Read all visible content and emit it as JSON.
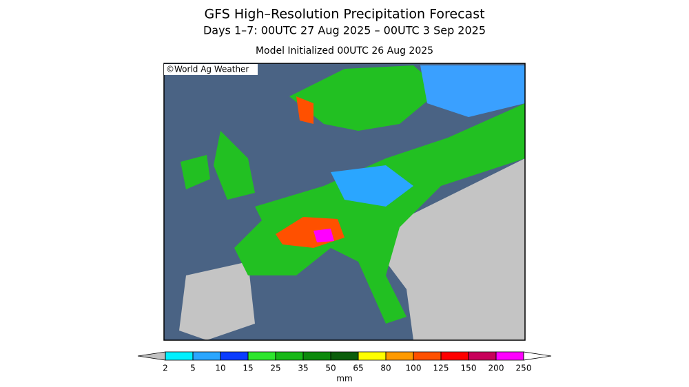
{
  "header": {
    "title": "GFS High–Resolution Precipitation Forecast",
    "subtitle": "Days 1–7: 00UTC 27 Aug 2025 – 00UTC 3 Sep 2025",
    "init": "Model Initialized 00UTC 26 Aug 2025"
  },
  "map": {
    "credit": "©World Ag Weather"
  },
  "colorbar": {
    "levels": [
      2,
      5,
      10,
      15,
      25,
      35,
      50,
      65,
      80,
      100,
      125,
      150,
      200,
      250
    ],
    "colors": [
      "#00f0ff",
      "#2aa6ff",
      "#0a3cff",
      "#2ee62e",
      "#17b817",
      "#0c8a0c",
      "#0a5e0a",
      "#ffff00",
      "#ff9a00",
      "#ff5000",
      "#ff0000",
      "#c8005a",
      "#ff00ff"
    ],
    "under_color": "#c0c0c0",
    "over_color": "#9a5cd0",
    "unit": "mm"
  }
}
